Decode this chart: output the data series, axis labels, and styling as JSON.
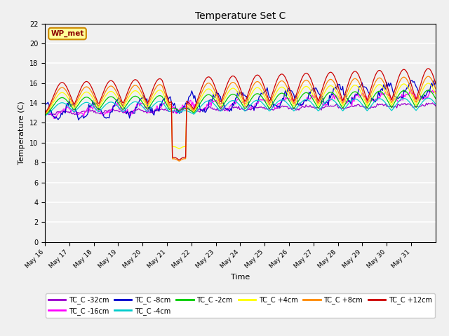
{
  "title": "Temperature Set C",
  "xlabel": "Time",
  "ylabel": "Temperature (C)",
  "ylim": [
    0,
    22
  ],
  "yticks": [
    0,
    2,
    4,
    6,
    8,
    10,
    12,
    14,
    16,
    18,
    20,
    22
  ],
  "legend_label": "WP_met",
  "series": [
    {
      "label": "TC_C -32cm",
      "color": "#9900cc"
    },
    {
      "label": "TC_C -16cm",
      "color": "#ff00ff"
    },
    {
      "label": "TC_C -8cm",
      "color": "#0000cc"
    },
    {
      "label": "TC_C -4cm",
      "color": "#00cccc"
    },
    {
      "label": "TC_C -2cm",
      "color": "#00cc00"
    },
    {
      "label": "TC_C +4cm",
      "color": "#ffff00"
    },
    {
      "label": "TC_C +8cm",
      "color": "#ff8800"
    },
    {
      "label": "TC_C +12cm",
      "color": "#cc0000"
    }
  ],
  "xtick_positions": [
    16,
    17,
    18,
    19,
    20,
    21,
    22,
    23,
    24,
    25,
    26,
    27,
    28,
    29,
    30,
    31
  ],
  "xtick_labels": [
    "May 16",
    "May 17",
    "May 18",
    "May 19",
    "May 20",
    "May 21",
    "May 22",
    "May 23",
    "May 24",
    "May 25",
    "May 26",
    "May 27",
    "May 28",
    "May 29",
    "May 30",
    "May 31"
  ]
}
